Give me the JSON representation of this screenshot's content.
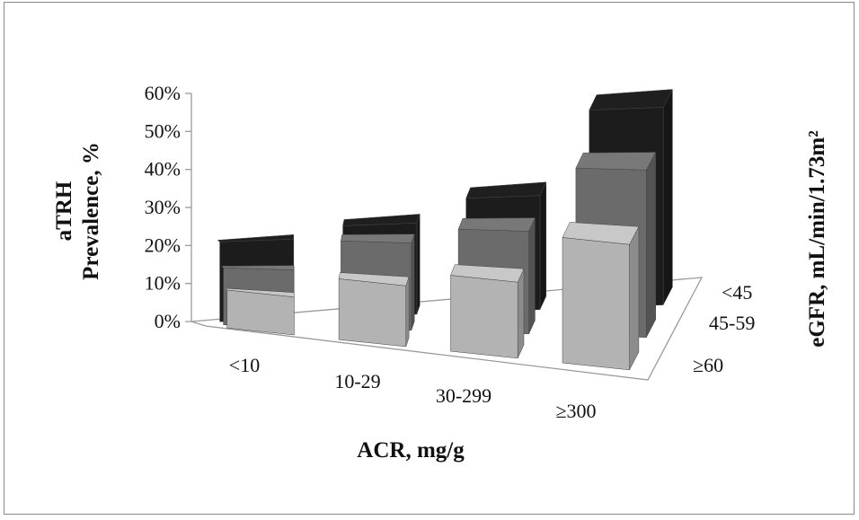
{
  "chart_data": {
    "type": "bar",
    "chart_style": "3d-column",
    "categories": [
      "<10",
      "10-29",
      "30-299",
      "≥300"
    ],
    "xlabel": "ACR, mg/g",
    "ylabel_line1": "aTRH",
    "ylabel_line2": "Prevalence,  %",
    "zlabel": "eGFR, mL/min/1.73m²",
    "yticks": [
      "0%",
      "10%",
      "20%",
      "30%",
      "40%",
      "50%",
      "60%"
    ],
    "ylim": [
      0,
      60
    ],
    "grid": false,
    "series": [
      {
        "name": "≥60",
        "values": [
          10,
          16,
          20,
          33
        ],
        "color": "#b3b3b3"
      },
      {
        "name": "45-59",
        "values": [
          15,
          23,
          27,
          44
        ],
        "color": "#6b6b6b"
      },
      {
        "name": "<45",
        "values": [
          21,
          24,
          30,
          52
        ],
        "color": "#1c1c1c"
      }
    ]
  }
}
